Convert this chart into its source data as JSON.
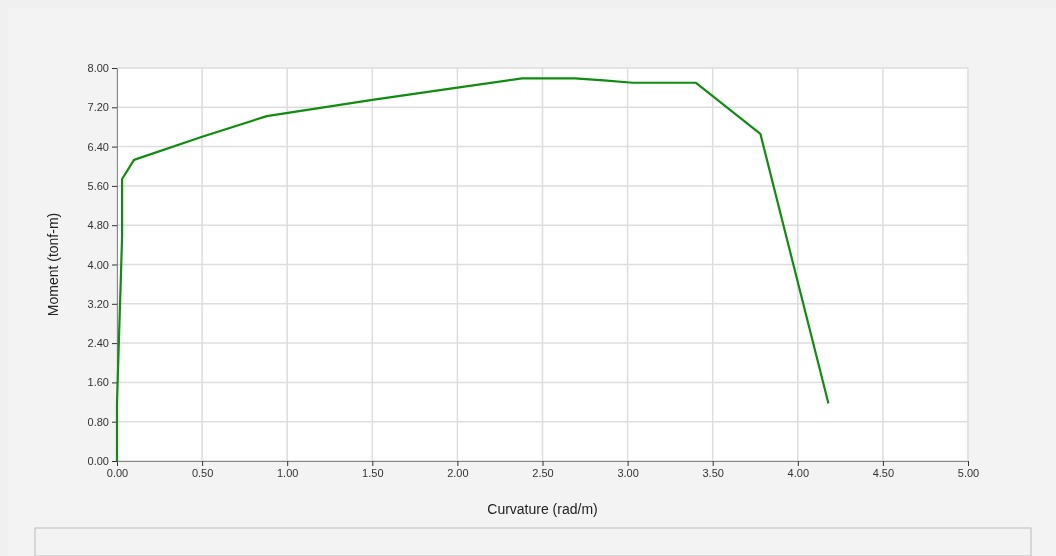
{
  "chart_data": {
    "type": "line",
    "xlabel": "Curvature (rad/m)",
    "ylabel": "Moment (tonf-m)",
    "x": [
      0,
      0,
      0.01,
      0.02,
      0.03,
      0.03,
      0.1,
      0.5,
      0.88,
      1.5,
      2.0,
      2.38,
      2.69,
      2.86,
      3.03,
      3.4,
      3.78,
      4.18
    ],
    "series": [
      {
        "color": "#108c10",
        "values": [
          0,
          1.17,
          2.32,
          3.44,
          4.58,
          5.74,
          6.13,
          6.6,
          7.02,
          7.35,
          7.6,
          7.79,
          7.79,
          7.75,
          7.7,
          7.7,
          6.66,
          1.17
        ]
      }
    ],
    "xlim": [
      0,
      5
    ],
    "xticks": [
      {
        "value": 0,
        "label": "0.00"
      },
      {
        "value": 0.5,
        "label": "0.50"
      },
      {
        "value": 1,
        "label": "1.00"
      },
      {
        "value": 1.5,
        "label": "1.50"
      },
      {
        "value": 2,
        "label": "2.00"
      },
      {
        "value": 2.5,
        "label": "2.50"
      },
      {
        "value": 3,
        "label": "3.00"
      },
      {
        "value": 3.5,
        "label": "3.50"
      },
      {
        "value": 4,
        "label": "4.00"
      },
      {
        "value": 4.5,
        "label": "4.50"
      },
      {
        "value": 5,
        "label": "5.00"
      }
    ],
    "ylim": [
      0,
      8
    ],
    "yticks": [
      {
        "value": 0,
        "label": "0.00"
      },
      {
        "value": 0.8,
        "label": "0.80"
      },
      {
        "value": 1.6,
        "label": "1.60"
      },
      {
        "value": 2.4,
        "label": "2.40"
      },
      {
        "value": 3.2,
        "label": "3.20"
      },
      {
        "value": 4,
        "label": "4.00"
      },
      {
        "value": 4.8,
        "label": "4.80"
      },
      {
        "value": 5.6,
        "label": "5.60"
      },
      {
        "value": 6.4,
        "label": "6.40"
      },
      {
        "value": 7.2,
        "label": "7.20"
      },
      {
        "value": 8,
        "label": "8.00"
      }
    ],
    "grid": true,
    "line_style": "solid"
  }
}
